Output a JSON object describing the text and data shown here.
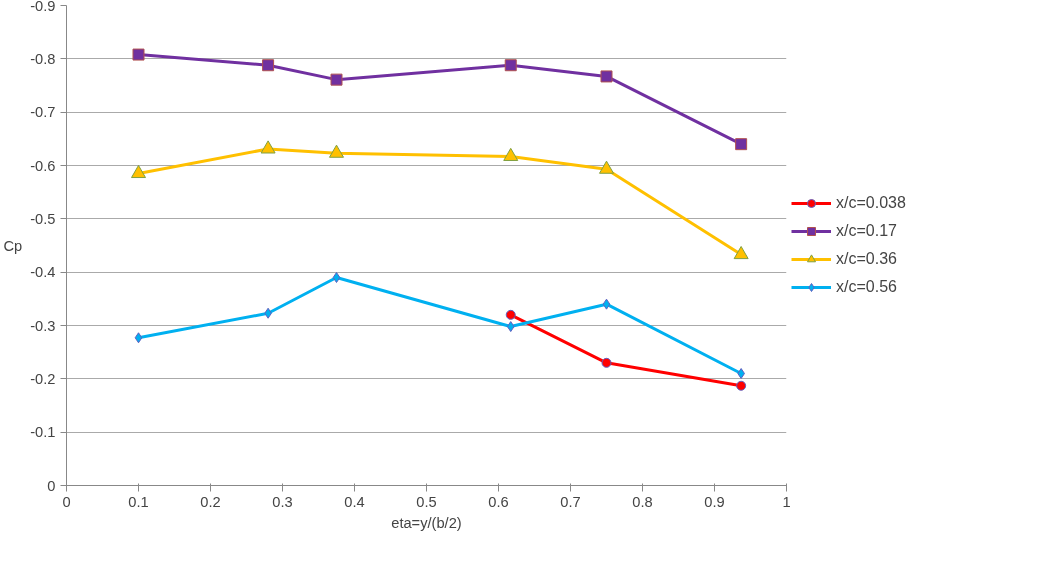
{
  "chart_data": {
    "type": "line",
    "xlabel": "eta=y/(b/2)",
    "ylabel": "Cp",
    "x": [
      0.1,
      0.28,
      0.375,
      0.617,
      0.75,
      0.937
    ],
    "series": [
      {
        "name": "x/c=0.038",
        "color": "#ff0000",
        "marker": "circle",
        "values": [
          null,
          null,
          null,
          -0.32,
          -0.23,
          -0.187
        ]
      },
      {
        "name": "x/c=0.17",
        "color": "#7030a0",
        "marker": "square",
        "values": [
          -0.808,
          -0.788,
          -0.761,
          -0.788,
          -0.767,
          -0.64
        ]
      },
      {
        "name": "x/c=0.36",
        "color": "#ffc000",
        "marker": "triangle",
        "values": [
          -0.585,
          -0.631,
          -0.623,
          -0.617,
          -0.593,
          -0.433
        ]
      },
      {
        "name": "x/c=0.56",
        "color": "#00b0f0",
        "marker": "diamond",
        "values": [
          -0.277,
          -0.323,
          -0.39,
          -0.298,
          -0.34,
          -0.21
        ]
      }
    ],
    "xlim": [
      0,
      1
    ],
    "xticks": [
      0,
      0.1,
      0.2,
      0.3,
      0.4,
      0.5,
      0.6,
      0.7,
      0.8,
      0.9,
      1
    ],
    "ylim": [
      0,
      -0.9
    ],
    "yticks": [
      0,
      -0.1,
      -0.2,
      -0.3,
      -0.4,
      -0.5,
      -0.6,
      -0.7,
      -0.8,
      -0.9
    ],
    "grid": "y",
    "legend": "right",
    "line_style": "solid"
  }
}
